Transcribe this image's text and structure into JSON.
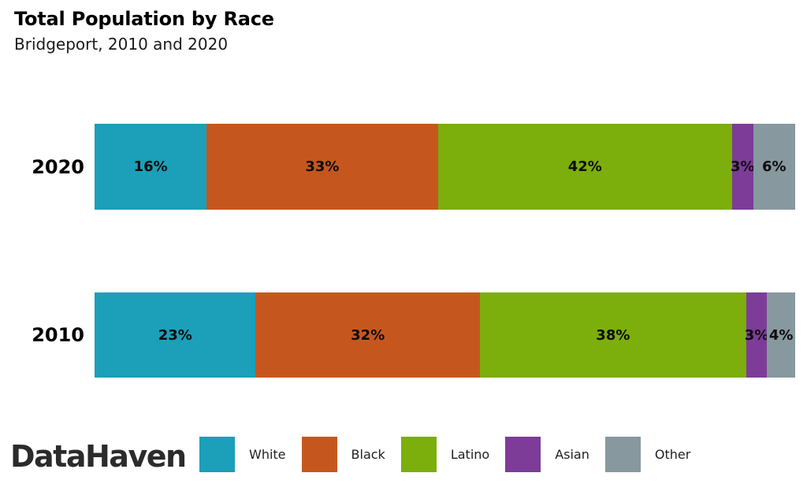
{
  "header": {
    "title": "Total Population by Race",
    "subtitle": "Bridgeport, 2010 and 2020"
  },
  "branding": {
    "logo_text": "DataHaven"
  },
  "chart_data": {
    "type": "bar",
    "subtype": "horizontal-stacked",
    "title": "Total Population by Race",
    "subtitle": "Bridgeport, 2010 and 2020",
    "categories": [
      "White",
      "Black",
      "Latino",
      "Asian",
      "Other"
    ],
    "colors": {
      "White": "#1C9FB8",
      "Black": "#C5571E",
      "Latino": "#7CAE0C",
      "Asian": "#7D3C98",
      "Other": "#87989F"
    },
    "rows": [
      {
        "label": "2020",
        "values": [
          16,
          33,
          42,
          3,
          6
        ]
      },
      {
        "label": "2010",
        "values": [
          23,
          32,
          38,
          3,
          4
        ]
      }
    ],
    "unit": "%",
    "value_label_format": "{v}%",
    "xlim": [
      0,
      100
    ],
    "grid": false,
    "axes_visible": false,
    "legend_position": "bottom",
    "value_label_color": "#0d0d0d",
    "text_color": "#000000"
  }
}
